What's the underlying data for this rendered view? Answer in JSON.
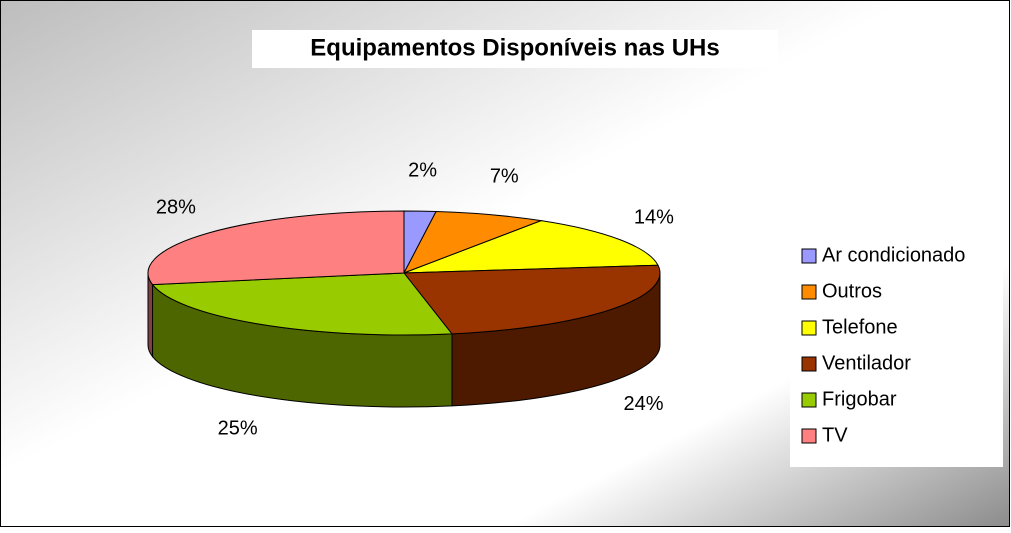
{
  "chart_data": {
    "type": "pie",
    "title": "Equipamentos Disponíveis nas UHs",
    "categories": [
      "Ar condicionado",
      "Outros",
      "Telefone",
      "Ventilador",
      "Frigobar",
      "TV"
    ],
    "values": [
      2,
      7,
      14,
      24,
      25,
      28
    ],
    "value_labels": [
      "2%",
      "7%",
      "14%",
      "24%",
      "25%",
      "28%"
    ],
    "colors": [
      "#9999ff",
      "#ff8c00",
      "#ffff00",
      "#993300",
      "#99cc00",
      "#ff8080"
    ],
    "legend": "right"
  }
}
